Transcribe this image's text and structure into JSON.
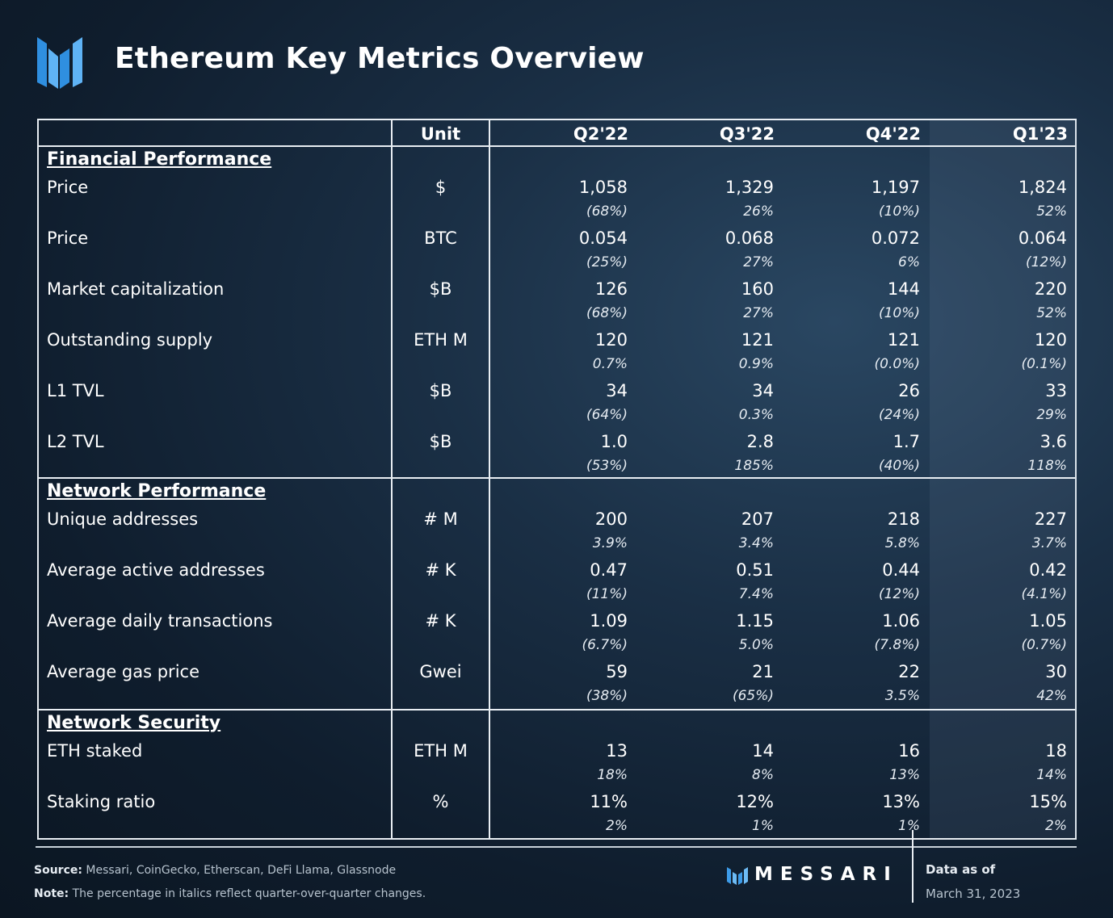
{
  "header": {
    "title": "Ethereum Key Metrics Overview",
    "logo_icon": "messari-m-icon"
  },
  "table": {
    "columns": [
      "Unit",
      "Q2'22",
      "Q3'22",
      "Q4'22",
      "Q1'23"
    ],
    "sections": [
      {
        "title": "Financial Performance",
        "rows": [
          {
            "label": "Price",
            "unit": "$",
            "values": [
              "1,058",
              "1,329",
              "1,197",
              "1,824"
            ],
            "changes": [
              "(68%)",
              "26%",
              "(10%)",
              "52%"
            ]
          },
          {
            "label": "Price",
            "unit": "BTC",
            "values": [
              "0.054",
              "0.068",
              "0.072",
              "0.064"
            ],
            "changes": [
              "(25%)",
              "27%",
              "6%",
              "(12%)"
            ]
          },
          {
            "label": "Market capitalization",
            "unit": "$B",
            "values": [
              "126",
              "160",
              "144",
              "220"
            ],
            "changes": [
              "(68%)",
              "27%",
              "(10%)",
              "52%"
            ]
          },
          {
            "label": "Outstanding supply",
            "unit": "ETH M",
            "values": [
              "120",
              "121",
              "121",
              "120"
            ],
            "changes": [
              "0.7%",
              "0.9%",
              "(0.0%)",
              "(0.1%)"
            ]
          },
          {
            "label": "L1 TVL",
            "unit": "$B",
            "values": [
              "34",
              "34",
              "26",
              "33"
            ],
            "changes": [
              "(64%)",
              "0.3%",
              "(24%)",
              "29%"
            ]
          },
          {
            "label": "L2 TVL",
            "unit": "$B",
            "values": [
              "1.0",
              "2.8",
              "1.7",
              "3.6"
            ],
            "changes": [
              "(53%)",
              "185%",
              "(40%)",
              "118%"
            ]
          }
        ]
      },
      {
        "title": "Network Performance",
        "rows": [
          {
            "label": "Unique addresses",
            "unit": "# M",
            "values": [
              "200",
              "207",
              "218",
              "227"
            ],
            "changes": [
              "3.9%",
              "3.4%",
              "5.8%",
              "3.7%"
            ]
          },
          {
            "label": "Average active addresses",
            "unit": "# K",
            "values": [
              "0.47",
              "0.51",
              "0.44",
              "0.42"
            ],
            "changes": [
              "(11%)",
              "7.4%",
              "(12%)",
              "(4.1%)"
            ]
          },
          {
            "label": "Average daily transactions",
            "unit": "# K",
            "values": [
              "1.09",
              "1.15",
              "1.06",
              "1.05"
            ],
            "changes": [
              "(6.7%)",
              "5.0%",
              "(7.8%)",
              "(0.7%)"
            ]
          },
          {
            "label": "Average gas price",
            "unit": "Gwei",
            "values": [
              "59",
              "21",
              "22",
              "30"
            ],
            "changes": [
              "(38%)",
              "(65%)",
              "3.5%",
              "42%"
            ]
          }
        ]
      },
      {
        "title": "Network Security",
        "rows": [
          {
            "label": "ETH staked",
            "unit": "ETH M",
            "values": [
              "13",
              "14",
              "16",
              "18"
            ],
            "changes": [
              "18%",
              "8%",
              "13%",
              "14%"
            ]
          },
          {
            "label": "Staking ratio",
            "unit": "%",
            "values": [
              "11%",
              "12%",
              "13%",
              "15%"
            ],
            "changes": [
              "2%",
              "1%",
              "1%",
              "2%"
            ]
          }
        ]
      }
    ]
  },
  "footer": {
    "source_label": "Source:",
    "source_text": "Messari, CoinGecko, Etherscan, DeFi Llama, Glassnode",
    "note_label": "Note:",
    "note_text": "The percentage in italics reflect quarter-over-quarter changes.",
    "brand": "MESSARI",
    "data_asof_label": "Data as of",
    "data_asof_value": "March 31, 2023"
  }
}
